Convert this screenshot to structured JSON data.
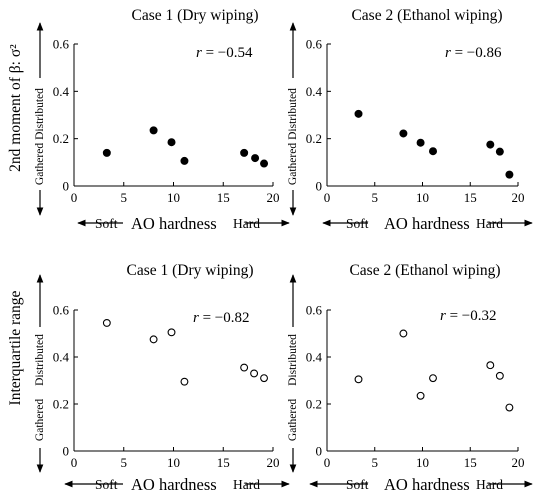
{
  "figure": {
    "ylabel_top": "2nd moment of β: σ²",
    "ylabel_bottom": "Interquartile range",
    "y_arrow_up": "Distributed",
    "y_arrow_down": "Gathered",
    "x_label": "AO hardness",
    "x_left": "Soft",
    "x_right": "Hard",
    "r_symbol": "r"
  },
  "chart_data": [
    {
      "type": "scatter",
      "title": "Case 1 (Dry wiping)",
      "r_value": "= −0.54",
      "marker": "filled",
      "xlim": [
        0,
        20
      ],
      "ylim": [
        0,
        0.6
      ],
      "xticks": [
        "0",
        "5",
        "10",
        "15",
        "20"
      ],
      "yticks": [
        "0",
        "0.2",
        "0.4",
        "0.6"
      ],
      "x": [
        3.3,
        8.0,
        9.8,
        11.1,
        17.1,
        18.2,
        19.1
      ],
      "y": [
        0.14,
        0.235,
        0.185,
        0.106,
        0.14,
        0.118,
        0.095
      ]
    },
    {
      "type": "scatter",
      "title": "Case 2 (Ethanol wiping)",
      "r_value": "= −0.86",
      "marker": "filled",
      "xlim": [
        0,
        20
      ],
      "ylim": [
        0,
        0.6
      ],
      "xticks": [
        "0",
        "5",
        "10",
        "15",
        "20"
      ],
      "yticks": [
        "0",
        "0.2",
        "0.4",
        "0.6"
      ],
      "x": [
        3.3,
        8.0,
        9.8,
        11.1,
        17.1,
        18.1,
        19.1
      ],
      "y": [
        0.305,
        0.222,
        0.183,
        0.147,
        0.175,
        0.145,
        0.048
      ]
    },
    {
      "type": "scatter",
      "title": "Case 1 (Dry wiping)",
      "r_value": "= −0.82",
      "marker": "open",
      "xlim": [
        0,
        20
      ],
      "ylim": [
        0,
        0.6
      ],
      "xticks": [
        "0",
        "5",
        "10",
        "15",
        "20"
      ],
      "yticks": [
        "0",
        "0.2",
        "0.4",
        "0.6"
      ],
      "x": [
        3.3,
        8.0,
        9.8,
        11.1,
        17.1,
        18.1,
        19.1
      ],
      "y": [
        0.545,
        0.475,
        0.505,
        0.295,
        0.355,
        0.33,
        0.31
      ]
    },
    {
      "type": "scatter",
      "title": "Case 2 (Ethanol wiping)",
      "r_value": "= −0.32",
      "marker": "open",
      "xlim": [
        0,
        20
      ],
      "ylim": [
        0,
        0.6
      ],
      "xticks": [
        "0",
        "5",
        "10",
        "15",
        "20"
      ],
      "yticks": [
        "0",
        "0.2",
        "0.4",
        "0.6"
      ],
      "x": [
        3.3,
        8.0,
        9.8,
        11.1,
        17.1,
        18.1,
        19.1
      ],
      "y": [
        0.305,
        0.5,
        0.235,
        0.31,
        0.365,
        0.32,
        0.185
      ]
    }
  ]
}
